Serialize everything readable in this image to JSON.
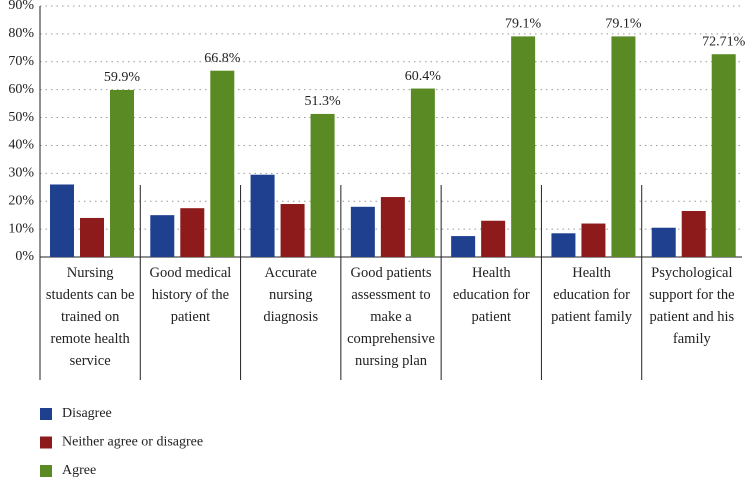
{
  "chart_data": {
    "type": "bar",
    "categories": [
      "Nursing students can be trained on remote health service",
      "Good medical history of the patient",
      "Accurate nursing diagnosis",
      "Good patients assessment to make a comprehensive nursing plan",
      "Health education for patient",
      "Health education for patient family",
      "Psychological support for the patient and his family"
    ],
    "series": [
      {
        "name": "Disagree",
        "color": "#1f3f8f",
        "values": [
          26,
          15,
          29.5,
          18,
          7.5,
          8.5,
          10.5
        ]
      },
      {
        "name": "Neither agree or disagree",
        "color": "#8e1b1b",
        "values": [
          14,
          17.5,
          19,
          21.5,
          13,
          12,
          16.5
        ]
      },
      {
        "name": "Agree",
        "color": "#5a8a24",
        "values": [
          59.9,
          66.8,
          51.3,
          60.4,
          79.1,
          79.1,
          72.71
        ],
        "value_labels": [
          "59.9%",
          "66.8%",
          "51.3%",
          "60.4%",
          "79.1%",
          "79.1%",
          "72.71%"
        ]
      }
    ],
    "ylim": [
      0,
      90
    ],
    "yticks": [
      {
        "value": 0,
        "label": "0%"
      },
      {
        "value": 10,
        "label": "10%"
      },
      {
        "value": 20,
        "label": "20%"
      },
      {
        "value": 30,
        "label": "30%"
      },
      {
        "value": 40,
        "label": "40%"
      },
      {
        "value": 50,
        "label": "50%"
      },
      {
        "value": 60,
        "label": "60%"
      },
      {
        "value": 70,
        "label": "70%"
      },
      {
        "value": 80,
        "label": "80%"
      },
      {
        "value": 90,
        "label": "90%"
      }
    ],
    "grid": true,
    "legend": "bottom-left"
  }
}
